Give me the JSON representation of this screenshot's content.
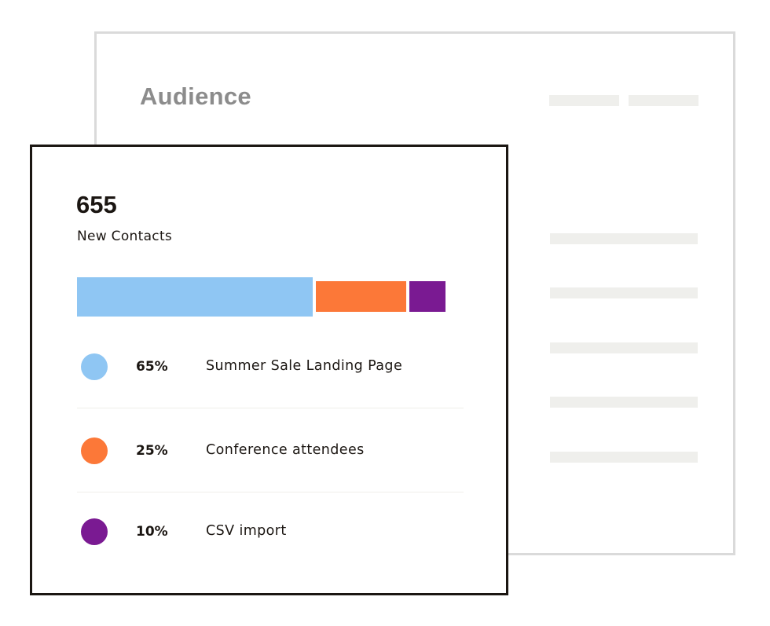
{
  "background_panel": {
    "title": "Audience"
  },
  "summary": {
    "count": "655",
    "label": "New Contacts"
  },
  "breakdown": [
    {
      "percent_label": "65%",
      "source": "Summer Sale Landing Page",
      "share": 0.65,
      "color": "#8fc6f3"
    },
    {
      "percent_label": "25%",
      "source": "Conference attendees",
      "share": 0.25,
      "color": "#fc7838"
    },
    {
      "percent_label": "10%",
      "source": "CSV import",
      "share": 0.1,
      "color": "#7a1a92"
    }
  ],
  "colors": {
    "card_border": "#1b1612",
    "panel_border": "#dadada",
    "placeholder": "#efefec",
    "title_muted": "#8c8c8c"
  }
}
